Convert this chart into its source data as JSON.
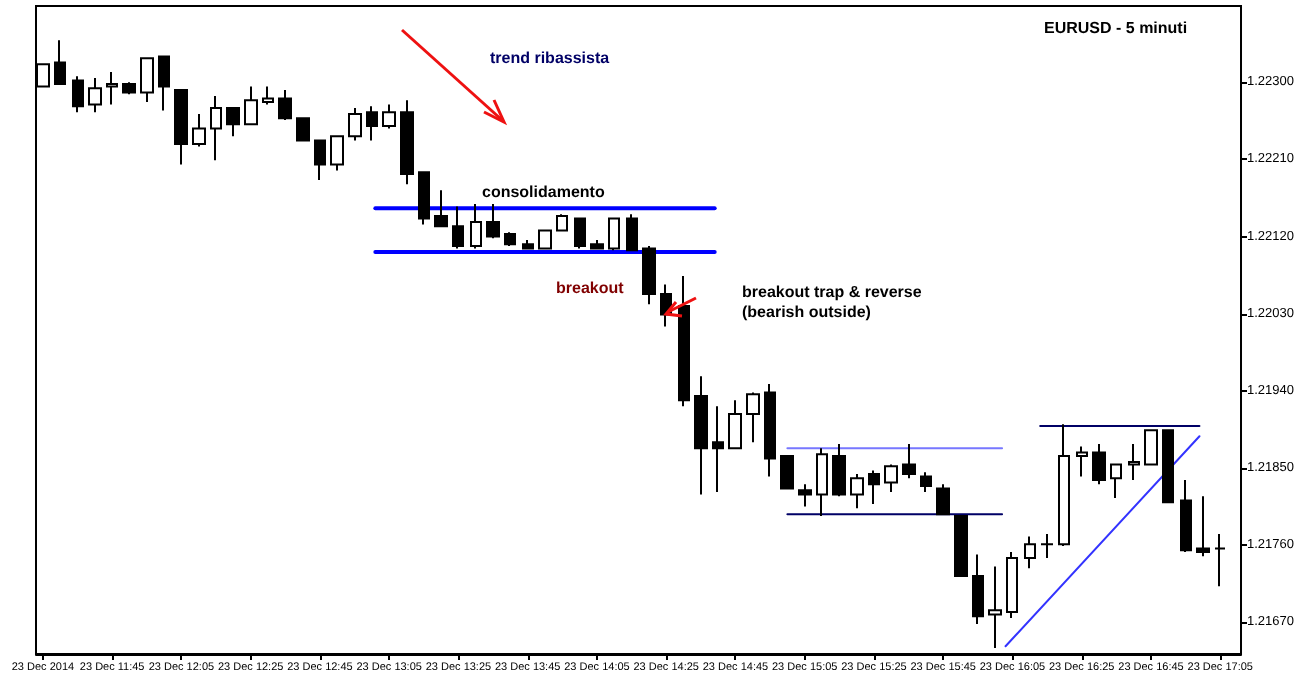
{
  "chart_data": {
    "type": "candlestick",
    "title": "EURUSD - 5 minuti",
    "annotations": [
      "trend ribassista",
      "consolidamento",
      "breakout",
      "breakout trap & reverse\n(bearish outside)"
    ],
    "xlim": [
      "2014-12-23T11:23",
      "2014-12-23T17:11"
    ],
    "xticks": [
      {
        "value": "2014-12-23T11:25",
        "label": "23 Dec 2014"
      },
      {
        "value": "2014-12-23T11:45",
        "label": "23 Dec 11:45"
      },
      {
        "value": "2014-12-23T12:05",
        "label": "23 Dec 12:05"
      },
      {
        "value": "2014-12-23T12:25",
        "label": "23 Dec 12:25"
      },
      {
        "value": "2014-12-23T12:45",
        "label": "23 Dec 12:45"
      },
      {
        "value": "2014-12-23T13:05",
        "label": "23 Dec 13:05"
      },
      {
        "value": "2014-12-23T13:25",
        "label": "23 Dec 13:25"
      },
      {
        "value": "2014-12-23T13:45",
        "label": "23 Dec 13:45"
      },
      {
        "value": "2014-12-23T14:05",
        "label": "23 Dec 14:05"
      },
      {
        "value": "2014-12-23T14:25",
        "label": "23 Dec 14:25"
      },
      {
        "value": "2014-12-23T14:45",
        "label": "23 Dec 14:45"
      },
      {
        "value": "2014-12-23T15:05",
        "label": "23 Dec 15:05"
      },
      {
        "value": "2014-12-23T15:25",
        "label": "23 Dec 15:25"
      },
      {
        "value": "2014-12-23T15:45",
        "label": "23 Dec 15:45"
      },
      {
        "value": "2014-12-23T16:05",
        "label": "23 Dec 16:05"
      },
      {
        "value": "2014-12-23T16:25",
        "label": "23 Dec 16:25"
      },
      {
        "value": "2014-12-23T16:45",
        "label": "23 Dec 16:45"
      },
      {
        "value": "2014-12-23T17:05",
        "label": "23 Dec 17:05"
      }
    ],
    "ylim": [
      1.21633,
      1.22389
    ],
    "yticks": [
      {
        "value": 1.2167,
        "label": "1.21670"
      },
      {
        "value": 1.2176,
        "label": "1.21760"
      },
      {
        "value": 1.2185,
        "label": "1.21850"
      },
      {
        "value": 1.2194,
        "label": "1.21940"
      },
      {
        "value": 1.2203,
        "label": "1.22030"
      },
      {
        "value": 1.2212,
        "label": "1.22120"
      },
      {
        "value": 1.2221,
        "label": "1.22210"
      },
      {
        "value": 1.223,
        "label": "1.22300"
      }
    ],
    "series": [
      {
        "type": "candlestick",
        "color": "#000000",
        "x": [
          "2014-12-23T11:25",
          "2014-12-23T11:30",
          "2014-12-23T11:35",
          "2014-12-23T11:40",
          "2014-12-23T11:45",
          "2014-12-23T11:50",
          "2014-12-23T11:55",
          "2014-12-23T12:00",
          "2014-12-23T12:05",
          "2014-12-23T12:10",
          "2014-12-23T12:15",
          "2014-12-23T12:20",
          "2014-12-23T12:25",
          "2014-12-23T12:30",
          "2014-12-23T12:35",
          "2014-12-23T12:40",
          "2014-12-23T12:45",
          "2014-12-23T12:50",
          "2014-12-23T12:55",
          "2014-12-23T13:00",
          "2014-12-23T13:05",
          "2014-12-23T13:10",
          "2014-12-23T13:15",
          "2014-12-23T13:20",
          "2014-12-23T13:25",
          "2014-12-23T13:30",
          "2014-12-23T13:35",
          "2014-12-23T13:40",
          "2014-12-23T13:45",
          "2014-12-23T13:50",
          "2014-12-23T13:55",
          "2014-12-23T14:00",
          "2014-12-23T14:05",
          "2014-12-23T14:10",
          "2014-12-23T14:15",
          "2014-12-23T14:20",
          "2014-12-23T14:25",
          "2014-12-23T14:30",
          "2014-12-23T14:35",
          "2014-12-23T14:40",
          "2014-12-23T14:45",
          "2014-12-23T14:50",
          "2014-12-23T14:55",
          "2014-12-23T15:00",
          "2014-12-23T15:05",
          "2014-12-23T15:10",
          "2014-12-23T15:15",
          "2014-12-23T15:20",
          "2014-12-23T15:25",
          "2014-12-23T15:30",
          "2014-12-23T15:35",
          "2014-12-23T15:40",
          "2014-12-23T15:45",
          "2014-12-23T15:50",
          "2014-12-23T15:55",
          "2014-12-23T16:00",
          "2014-12-23T16:05",
          "2014-12-23T16:10",
          "2014-12-23T16:15",
          "2014-12-23T16:20",
          "2014-12-23T16:25",
          "2014-12-23T16:30",
          "2014-12-23T16:35",
          "2014-12-23T16:40",
          "2014-12-23T16:45",
          "2014-12-23T16:50",
          "2014-12-23T16:55",
          "2014-12-23T17:00",
          "2014-12-23T17:05"
        ],
        "ohlc": [
          [
            1.22295,
            1.22321,
            1.22295,
            1.22321
          ],
          [
            1.22323,
            1.22349,
            1.22298,
            1.22298
          ],
          [
            1.22302,
            1.22307,
            1.22265,
            1.22272
          ],
          [
            1.22274,
            1.22305,
            1.22265,
            1.22293
          ],
          [
            1.22295,
            1.22312,
            1.22274,
            1.22298
          ],
          [
            1.22298,
            1.223,
            1.22286,
            1.22288
          ],
          [
            1.22288,
            1.22328,
            1.22277,
            1.22328
          ],
          [
            1.2233,
            1.2233,
            1.22267,
            1.22295
          ],
          [
            1.22291,
            1.22291,
            1.22204,
            1.22228
          ],
          [
            1.22228,
            1.22263,
            1.22225,
            1.22246
          ],
          [
            1.22246,
            1.22284,
            1.22209,
            1.2227
          ],
          [
            1.2227,
            1.2227,
            1.22237,
            1.22251
          ],
          [
            1.22251,
            1.22295,
            1.22251,
            1.22279
          ],
          [
            1.22277,
            1.22295,
            1.22274,
            1.22281
          ],
          [
            1.22281,
            1.22291,
            1.22256,
            1.22258
          ],
          [
            1.22258,
            1.22258,
            1.22232,
            1.22232
          ],
          [
            1.22232,
            1.22232,
            1.22186,
            1.22204
          ],
          [
            1.22204,
            1.22237,
            1.22197,
            1.22237
          ],
          [
            1.22237,
            1.2227,
            1.22232,
            1.22263
          ],
          [
            1.22265,
            1.22272,
            1.22232,
            1.22249
          ],
          [
            1.22249,
            1.22274,
            1.22246,
            1.22265
          ],
          [
            1.22265,
            1.22279,
            1.22181,
            1.22193
          ],
          [
            1.22195,
            1.22195,
            1.22134,
            1.22141
          ],
          [
            1.22144,
            1.22174,
            1.22132,
            1.22132
          ],
          [
            1.22132,
            1.22155,
            1.22106,
            1.22109
          ],
          [
            1.22109,
            1.22158,
            1.22106,
            1.22137
          ],
          [
            1.22137,
            1.22158,
            1.22118,
            1.2212
          ],
          [
            1.22123,
            1.22125,
            1.22109,
            1.22111
          ],
          [
            1.22111,
            1.22116,
            1.22106,
            1.22106
          ],
          [
            1.22106,
            1.22127,
            1.22106,
            1.22127
          ],
          [
            1.22127,
            1.22146,
            1.22127,
            1.22144
          ],
          [
            1.22141,
            1.22141,
            1.22106,
            1.22109
          ],
          [
            1.22111,
            1.22116,
            1.22106,
            1.22106
          ],
          [
            1.22106,
            1.22141,
            1.22104,
            1.22141
          ],
          [
            1.22141,
            1.22146,
            1.22104,
            1.22104
          ],
          [
            1.22106,
            1.22109,
            1.22041,
            1.22053
          ],
          [
            1.22053,
            1.22064,
            1.22015,
            1.22029
          ],
          [
            1.22039,
            1.22074,
            1.21922,
            1.21929
          ],
          [
            1.21934,
            1.21957,
            1.21819,
            1.21873
          ],
          [
            1.2188,
            1.21922,
            1.21822,
            1.21873
          ],
          [
            1.21873,
            1.21929,
            1.21873,
            1.21913
          ],
          [
            1.21913,
            1.21938,
            1.2188,
            1.21936
          ],
          [
            1.21938,
            1.21948,
            1.2184,
            1.21861
          ],
          [
            1.21864,
            1.21864,
            1.21826,
            1.21826
          ],
          [
            1.21824,
            1.21831,
            1.21805,
            1.21819
          ],
          [
            1.21819,
            1.21873,
            1.21794,
            1.21866
          ],
          [
            1.21864,
            1.21878,
            1.21817,
            1.21819
          ],
          [
            1.21819,
            1.21843,
            1.21803,
            1.21838
          ],
          [
            1.21843,
            1.21847,
            1.21808,
            1.21831
          ],
          [
            1.21833,
            1.21854,
            1.21822,
            1.21852
          ],
          [
            1.21854,
            1.21878,
            1.21838,
            1.21843
          ],
          [
            1.2184,
            1.21845,
            1.21822,
            1.21829
          ],
          [
            1.21826,
            1.21831,
            1.21796,
            1.21796
          ],
          [
            1.21794,
            1.21794,
            1.21724,
            1.21724
          ],
          [
            1.21724,
            1.21749,
            1.21668,
            1.21677
          ],
          [
            1.21679,
            1.21735,
            1.2164,
            1.21684
          ],
          [
            1.21682,
            1.21752,
            1.21675,
            1.21745
          ],
          [
            1.21745,
            1.2177,
            1.21733,
            1.21761
          ],
          [
            1.21761,
            1.21773,
            1.21745,
            1.21761
          ],
          [
            1.21761,
            1.21901,
            1.21759,
            1.21864
          ],
          [
            1.21864,
            1.21875,
            1.2184,
            1.21868
          ],
          [
            1.21868,
            1.21878,
            1.21831,
            1.21836
          ],
          [
            1.21838,
            1.21854,
            1.21815,
            1.21854
          ],
          [
            1.21854,
            1.21878,
            1.21836,
            1.21857
          ],
          [
            1.21854,
            1.21894,
            1.21854,
            1.21894
          ],
          [
            1.21894,
            1.21894,
            1.2181,
            1.2181
          ],
          [
            1.21812,
            1.21836,
            1.21752,
            1.21754
          ],
          [
            1.21756,
            1.21817,
            1.21747,
            1.21752
          ],
          [
            1.21756,
            1.21773,
            1.21712,
            1.21756
          ]
        ]
      },
      {
        "type": "line",
        "color": "#0000ff",
        "x": [
          "2014-12-23T13:01",
          "2014-12-23T14:39"
        ],
        "values": [
          1.22153,
          1.22153
        ]
      },
      {
        "type": "line",
        "color": "#0000ff",
        "x": [
          "2014-12-23T13:01",
          "2014-12-23T14:39"
        ],
        "values": [
          1.22102,
          1.22102
        ]
      },
      {
        "type": "line",
        "color": "#7777ff",
        "x": [
          "2014-12-23T15:00",
          "2014-12-23T16:02"
        ],
        "values": [
          1.21873,
          1.21873
        ]
      },
      {
        "type": "line",
        "color": "#000066",
        "x": [
          "2014-12-23T15:00",
          "2014-12-23T16:02"
        ],
        "values": [
          1.21796,
          1.21796
        ]
      },
      {
        "type": "line",
        "color": "#000066",
        "x": [
          "2014-12-23T16:13",
          "2014-12-23T16:59"
        ],
        "values": [
          1.21899,
          1.21899
        ]
      },
      {
        "type": "line",
        "color": "#3333ff",
        "x": [
          "2014-12-23T16:03",
          "2014-12-23T16:59"
        ],
        "values": [
          1.21642,
          1.21887
        ]
      }
    ]
  }
}
